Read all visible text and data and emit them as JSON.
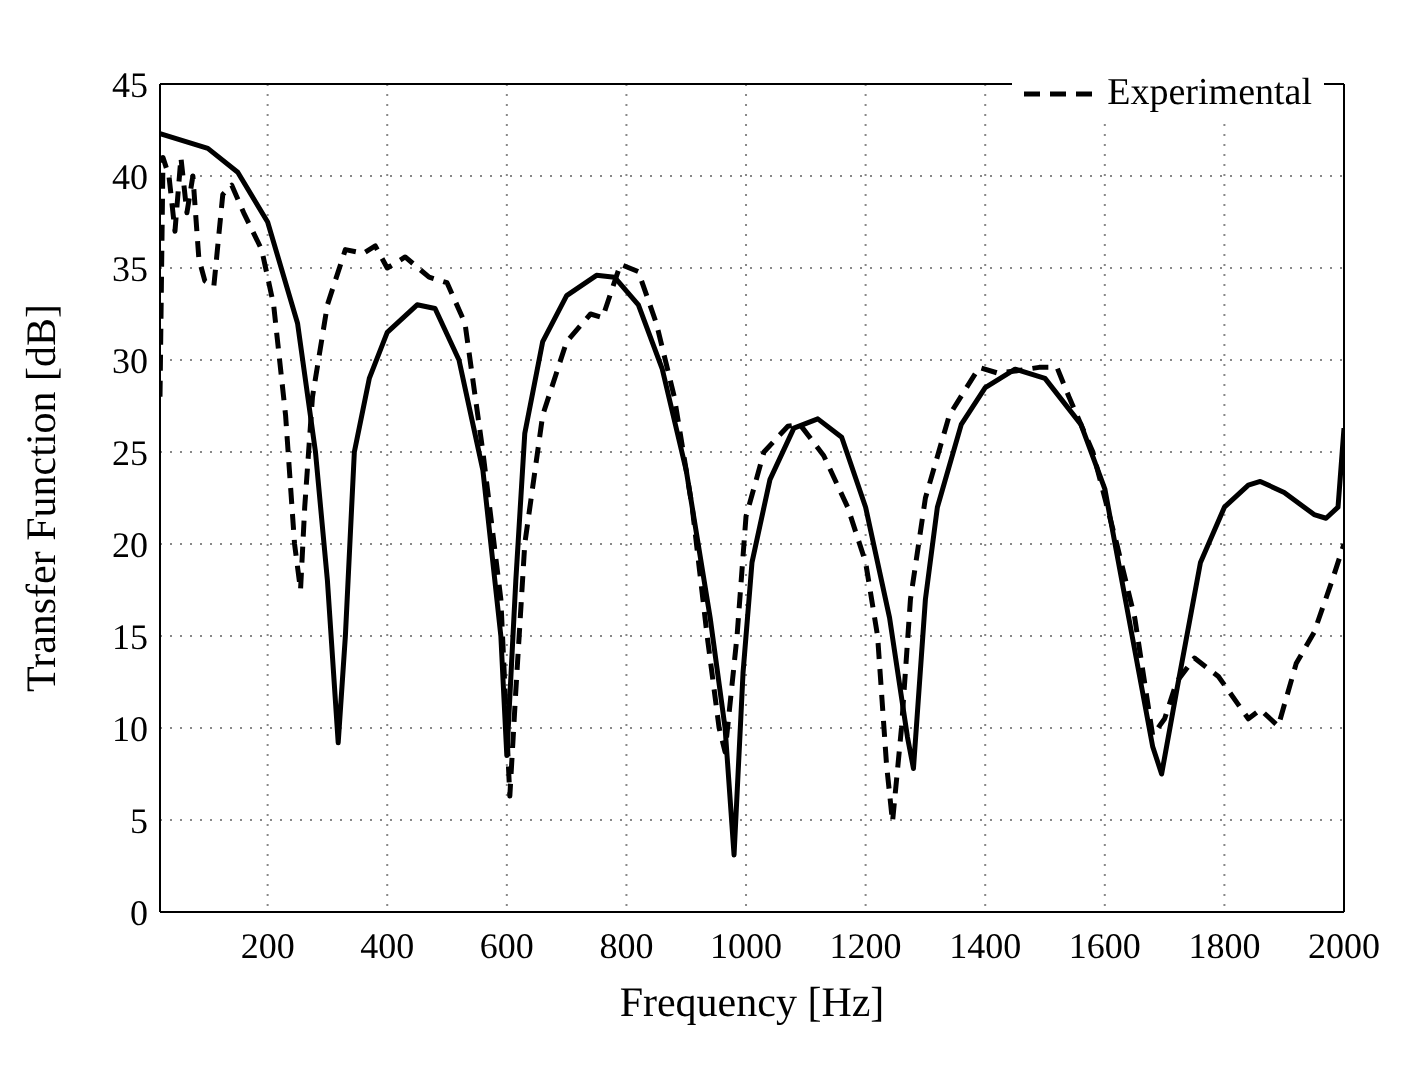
{
  "chart_data": {
    "type": "line",
    "xlabel": "Frequency [Hz]",
    "ylabel": "Transfer Function [dB]",
    "xlim": [
      20,
      2000
    ],
    "xticks": [
      200,
      400,
      600,
      800,
      1000,
      1200,
      1400,
      1600,
      1800,
      2000
    ],
    "ylim": [
      0,
      45
    ],
    "yticks": [
      0,
      5,
      10,
      15,
      20,
      25,
      30,
      35,
      40,
      45
    ],
    "grid": true,
    "legend": "top right",
    "series": [
      {
        "name": "Experimental",
        "color": "#000000",
        "line_style": "dashed",
        "x": [
          20,
          25,
          35,
          45,
          55,
          65,
          75,
          85,
          95,
          110,
          125,
          140,
          160,
          190,
          210,
          230,
          245,
          255,
          262,
          275,
          300,
          330,
          360,
          380,
          400,
          430,
          470,
          500,
          530,
          560,
          590,
          605,
          615,
          630,
          660,
          700,
          740,
          760,
          790,
          820,
          850,
          880,
          910,
          935,
          955,
          965,
          985,
          1000,
          1030,
          1070,
          1090,
          1130,
          1170,
          1200,
          1220,
          1235,
          1245,
          1260,
          1275,
          1300,
          1340,
          1390,
          1420,
          1450,
          1490,
          1520,
          1540,
          1580,
          1620,
          1650,
          1680,
          1700,
          1720,
          1750,
          1790,
          1840,
          1860,
          1890,
          1920,
          1950,
          1980,
          2000
        ],
        "values": [
          28,
          41,
          40,
          37,
          41,
          38,
          40,
          35.5,
          34.3,
          34,
          39,
          39.5,
          38,
          36,
          33,
          27,
          20,
          17.5,
          22,
          28,
          33,
          36,
          35.8,
          36.2,
          35,
          35.6,
          34.5,
          34.2,
          32,
          25,
          17,
          6.3,
          12,
          20,
          27,
          31,
          32.5,
          32.3,
          35.2,
          34.8,
          32,
          28,
          22,
          15,
          10,
          8.7,
          15,
          21.5,
          25,
          26.4,
          26.5,
          24.8,
          22,
          19,
          15,
          8,
          4.9,
          10,
          17,
          22.5,
          27,
          29.6,
          29.3,
          29.4,
          29.6,
          29.6,
          28,
          25,
          20,
          16,
          9.6,
          10.5,
          12.5,
          13.8,
          12.8,
          10.5,
          11,
          10.1,
          13.5,
          15.2,
          18,
          20
        ]
      },
      {
        "color": "#000000",
        "line_style": "solid",
        "x": [
          20,
          100,
          150,
          200,
          250,
          280,
          300,
          318,
          330,
          345,
          370,
          400,
          450,
          480,
          520,
          560,
          590,
          600,
          615,
          630,
          660,
          700,
          750,
          780,
          820,
          860,
          900,
          940,
          965,
          980,
          995,
          1010,
          1040,
          1080,
          1120,
          1160,
          1200,
          1240,
          1270,
          1280,
          1300,
          1320,
          1360,
          1400,
          1450,
          1500,
          1560,
          1600,
          1640,
          1680,
          1695,
          1720,
          1760,
          1800,
          1840,
          1860,
          1900,
          1950,
          1970,
          1990,
          2000
        ],
        "values": [
          42.3,
          41.5,
          40.2,
          37.5,
          32,
          25,
          18,
          9.2,
          15,
          25,
          29,
          31.5,
          33,
          32.8,
          30,
          24,
          15,
          8.5,
          18,
          26,
          31,
          33.5,
          34.6,
          34.5,
          33,
          29.5,
          24,
          16,
          10,
          3.1,
          13,
          19,
          23.5,
          26.3,
          26.8,
          25.8,
          22,
          16,
          9.5,
          7.8,
          17,
          22,
          26.5,
          28.5,
          29.5,
          29,
          26.5,
          23,
          16,
          9,
          7.5,
          12,
          19,
          22,
          23.2,
          23.4,
          22.8,
          21.6,
          21.4,
          22,
          26.3
        ]
      }
    ]
  }
}
